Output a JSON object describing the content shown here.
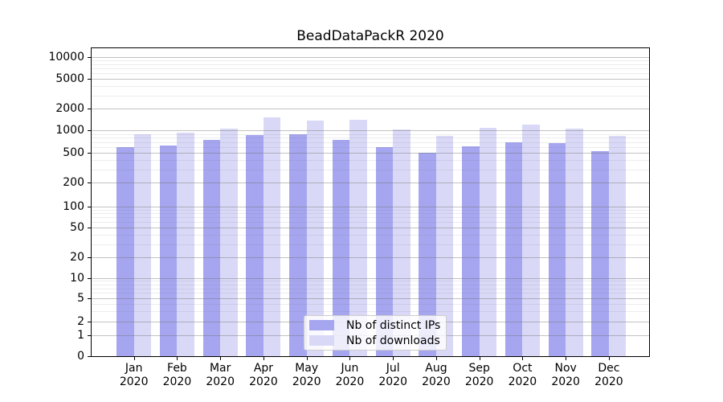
{
  "chart_data": {
    "type": "bar",
    "title": "BeadDataPackR 2020",
    "categories": [
      "Jan 2020",
      "Feb 2020",
      "Mar 2020",
      "Apr 2020",
      "May 2020",
      "Jun 2020",
      "Jul 2020",
      "Aug 2020",
      "Sep 2020",
      "Oct 2020",
      "Nov 2020",
      "Dec 2020"
    ],
    "series": [
      {
        "name": "Nb of distinct IPs",
        "color": "#a6a6f0",
        "values": [
          600,
          630,
          740,
          875,
          900,
          740,
          600,
          500,
          610,
          690,
          670,
          530
        ]
      },
      {
        "name": "Nb of downloads",
        "color": "#d9d9f7",
        "values": [
          900,
          930,
          1070,
          1530,
          1370,
          1390,
          1030,
          850,
          1080,
          1200,
          1070,
          840
        ]
      }
    ],
    "y_axis": {
      "ticks": [
        0,
        1,
        2,
        5,
        10,
        20,
        50,
        100,
        200,
        500,
        1000,
        2000,
        5000,
        10000
      ],
      "scale": "symlog"
    },
    "x_axis": {
      "year_line": "2020"
    },
    "legend": {
      "entries": [
        "Nb of distinct IPs",
        "Nb of downloads"
      ],
      "position": "lower center"
    },
    "grid": true
  },
  "colors": {
    "bar_distinct_ips": "#a6a6f0",
    "bar_downloads": "#d9d9f7",
    "major_grid": "#c7c7c7",
    "minor_grid": "#efefef",
    "spine": "#000000",
    "text": "#000000",
    "legend_border": "#cccccc"
  }
}
